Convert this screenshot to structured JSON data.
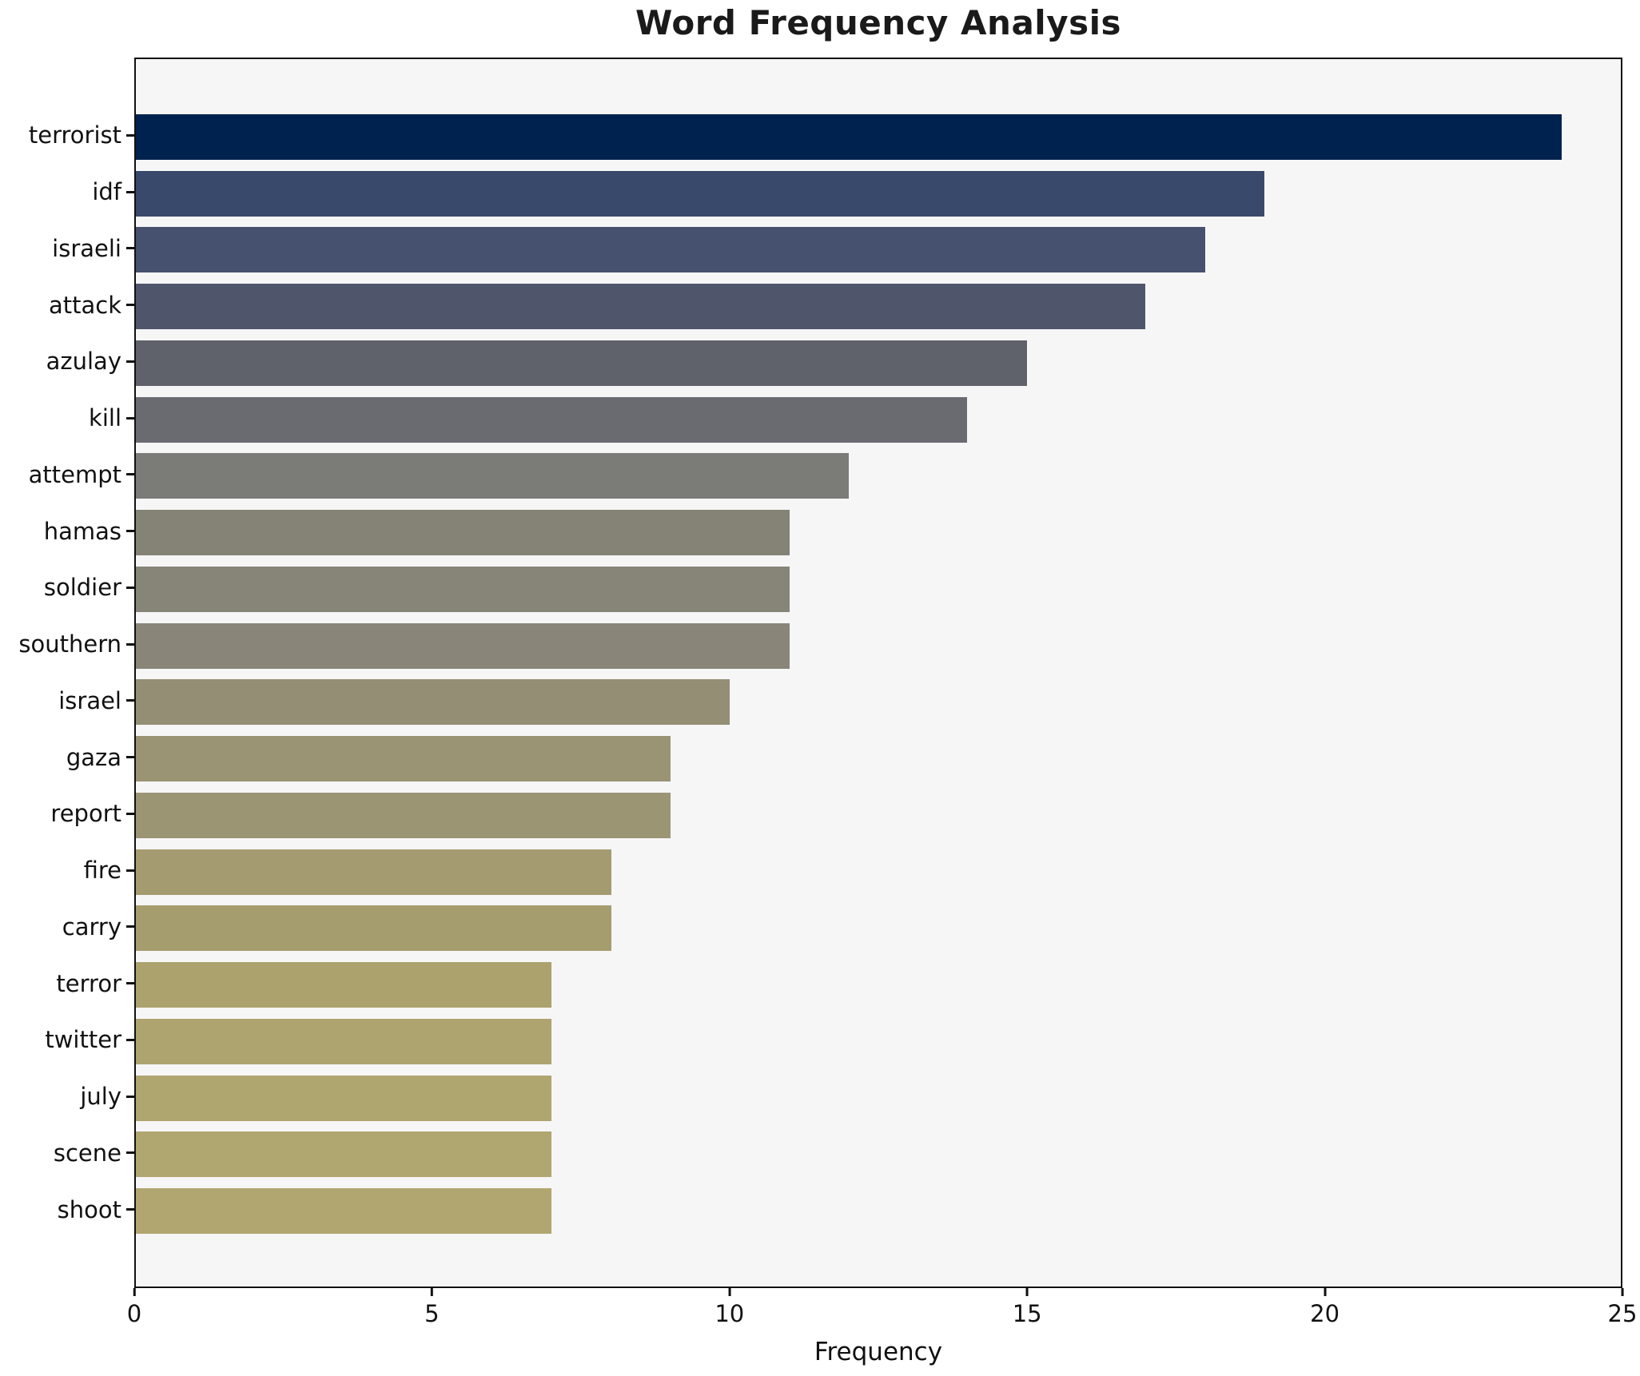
{
  "figure": {
    "title": "Word Frequency Analysis",
    "xlabel": "Frequency"
  },
  "chart_data": {
    "type": "bar",
    "orientation": "horizontal",
    "title": "Word Frequency Analysis",
    "xlabel": "Frequency",
    "ylabel": "",
    "xlim": [
      0,
      25
    ],
    "x_ticks": [
      0,
      5,
      10,
      15,
      20,
      25
    ],
    "grid": false,
    "legend": false,
    "plot_background": "#f6f6f7",
    "axis_color": "#111111",
    "categories": [
      "terrorist",
      "idf",
      "israeli",
      "attack",
      "azulay",
      "kill",
      "attempt",
      "hamas",
      "soldier",
      "southern",
      "israel",
      "gaza",
      "report",
      "fire",
      "carry",
      "terror",
      "twitter",
      "july",
      "scene",
      "shoot"
    ],
    "values": [
      24,
      19,
      18,
      17,
      15,
      14,
      12,
      11,
      11,
      11,
      10,
      9,
      9,
      8,
      8,
      7,
      7,
      7,
      7,
      7
    ],
    "bar_colors": [
      "#00224e",
      "#38496c",
      "#45516e",
      "#4f566c",
      "#5f626b",
      "#6a6b71",
      "#7b7b77",
      "#858276",
      "#878478",
      "#898579",
      "#948e75",
      "#9a9475",
      "#9c9574",
      "#a49c70",
      "#a69d6f",
      "#aca26e",
      "#aea46f",
      "#afa56f",
      "#b0a66f",
      "#b1a670"
    ]
  }
}
